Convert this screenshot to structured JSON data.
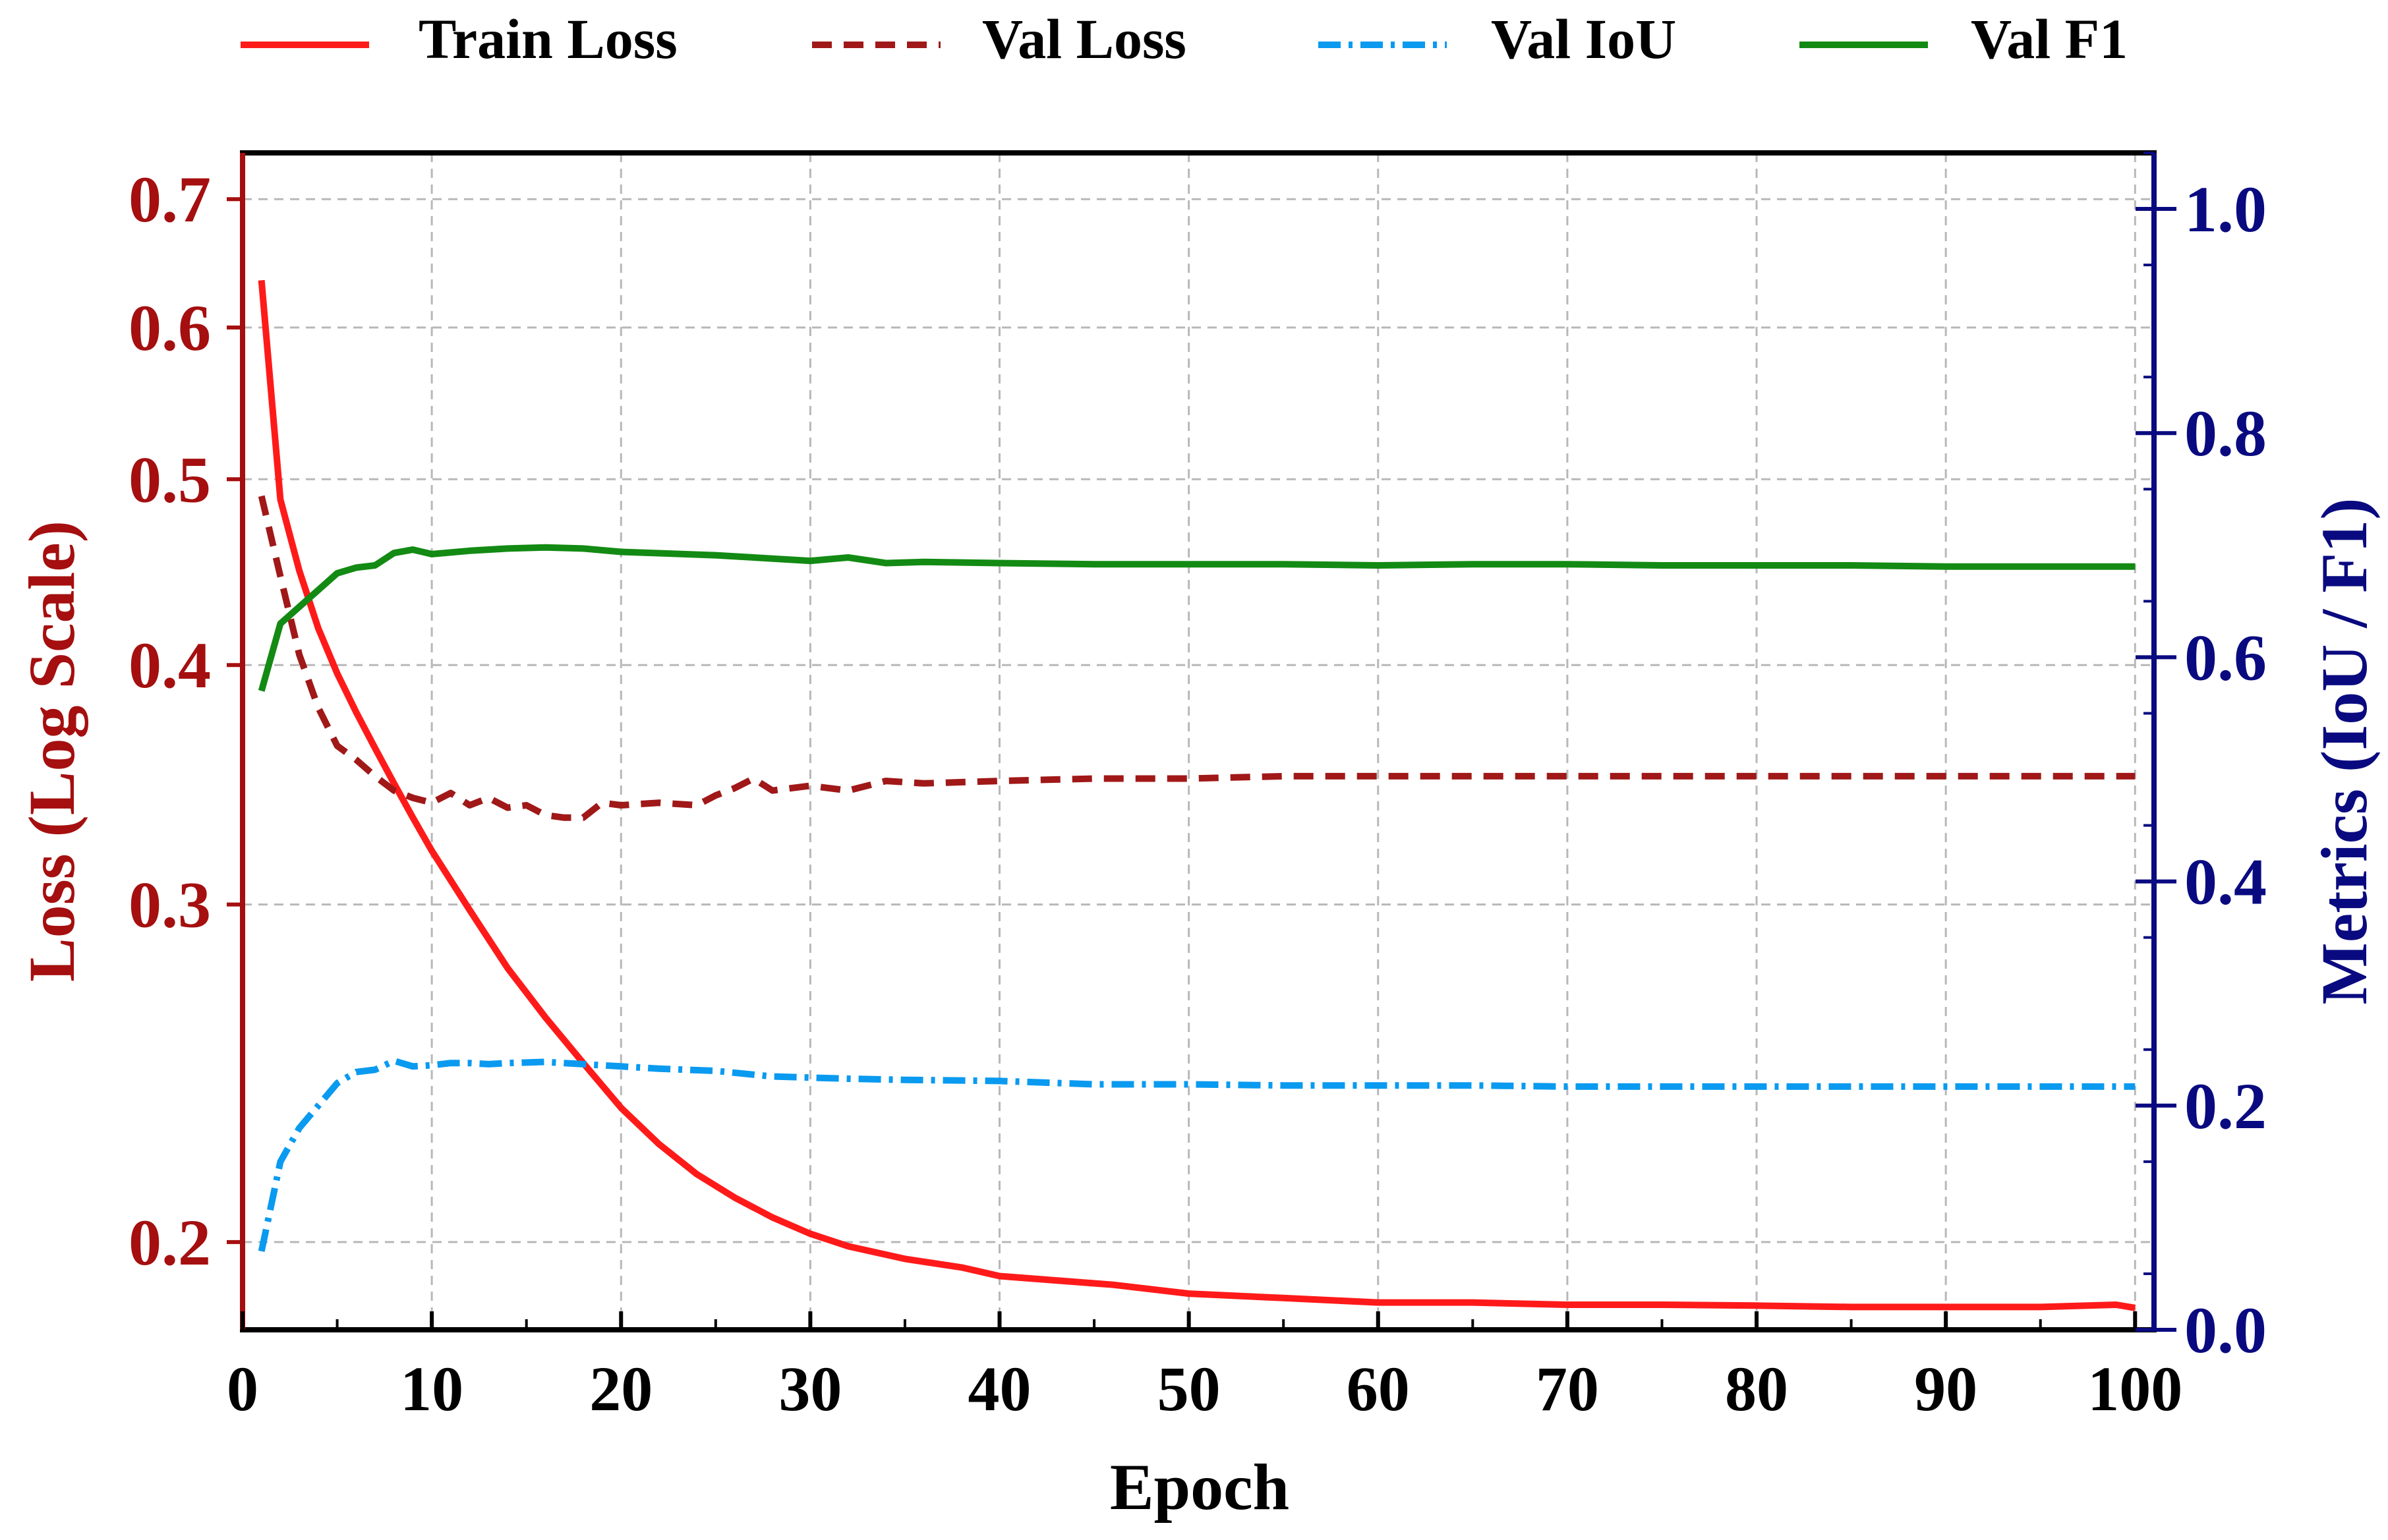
{
  "chart_data": {
    "type": "line",
    "title": "",
    "xlabel": "Epoch",
    "ylabel_left": "Loss (Log Scale)",
    "ylabel_right": "Metrics (IoU / F1)",
    "xlim": [
      0,
      101
    ],
    "ylim_left": [
      0.18,
      0.74
    ],
    "ylim_right": [
      0.0,
      1.05
    ],
    "yscale_left": "log",
    "grid": true,
    "legend_position": "top",
    "x_ticks": [
      "0",
      "10",
      "20",
      "30",
      "40",
      "50",
      "60",
      "70",
      "80",
      "90",
      "100"
    ],
    "y_left_ticks": [
      "0.2",
      "0.3",
      "0.4",
      "0.5",
      "0.6",
      "0.7"
    ],
    "y_right_ticks": [
      "0.0",
      "0.2",
      "0.4",
      "0.6",
      "0.8",
      "1.0"
    ],
    "colors": {
      "left_axis": "#a50f0f",
      "right_axis": "#0a0a80",
      "train_loss": "#ff1a1a",
      "val_loss": "#a01818",
      "val_iou": "#0a9af0",
      "val_f1": "#138a13",
      "grid": "#b8b8b8"
    },
    "series": [
      {
        "name": "Train Loss",
        "axis": "left",
        "style": "solid",
        "x": [
          1,
          2,
          3,
          4,
          5,
          6,
          7,
          8,
          9,
          10,
          12,
          14,
          16,
          18,
          20,
          22,
          24,
          26,
          28,
          30,
          32,
          35,
          38,
          40,
          43,
          46,
          50,
          55,
          60,
          65,
          70,
          75,
          80,
          85,
          90,
          95,
          99,
          100
        ],
        "values": [
          0.635,
          0.488,
          0.448,
          0.418,
          0.396,
          0.378,
          0.362,
          0.347,
          0.333,
          0.32,
          0.298,
          0.278,
          0.262,
          0.248,
          0.235,
          0.225,
          0.217,
          0.211,
          0.206,
          0.202,
          0.199,
          0.196,
          0.194,
          0.192,
          0.191,
          0.19,
          0.188,
          0.187,
          0.186,
          0.186,
          0.1855,
          0.1855,
          0.1853,
          0.185,
          0.185,
          0.185,
          0.1855,
          0.1848
        ]
      },
      {
        "name": "Val Loss",
        "axis": "left",
        "style": "dashed",
        "x": [
          1,
          2,
          3,
          4,
          5,
          6,
          7,
          8,
          9,
          10,
          11,
          12,
          13,
          14,
          15,
          16,
          17,
          18,
          19,
          20,
          22,
          24,
          25,
          26,
          27,
          28,
          30,
          32,
          34,
          36,
          40,
          45,
          50,
          55,
          60,
          70,
          80,
          90,
          95,
          100
        ],
        "values": [
          0.49,
          0.445,
          0.405,
          0.38,
          0.363,
          0.357,
          0.35,
          0.344,
          0.341,
          0.339,
          0.343,
          0.338,
          0.341,
          0.337,
          0.338,
          0.334,
          0.333,
          0.333,
          0.339,
          0.338,
          0.339,
          0.338,
          0.342,
          0.345,
          0.349,
          0.344,
          0.346,
          0.344,
          0.348,
          0.347,
          0.348,
          0.349,
          0.349,
          0.35,
          0.35,
          0.35,
          0.35,
          0.35,
          0.35,
          0.35
        ]
      },
      {
        "name": "Val IoU",
        "axis": "right",
        "style": "dashdot",
        "x": [
          1,
          2,
          3,
          4,
          5,
          6,
          7,
          8,
          9,
          10,
          11,
          12,
          13,
          14,
          16,
          17,
          18,
          20,
          22,
          25,
          28,
          30,
          32,
          35,
          40,
          45,
          50,
          55,
          60,
          65,
          70,
          75,
          80,
          85,
          90,
          95,
          100
        ],
        "values": [
          0.07,
          0.15,
          0.18,
          0.2,
          0.22,
          0.23,
          0.232,
          0.24,
          0.235,
          0.236,
          0.238,
          0.238,
          0.237,
          0.238,
          0.239,
          0.238,
          0.237,
          0.235,
          0.233,
          0.231,
          0.226,
          0.225,
          0.224,
          0.223,
          0.222,
          0.219,
          0.219,
          0.218,
          0.218,
          0.218,
          0.217,
          0.217,
          0.217,
          0.217,
          0.217,
          0.217,
          0.217
        ]
      },
      {
        "name": "Val F1",
        "axis": "right",
        "style": "solid",
        "x": [
          1,
          2,
          3,
          4,
          5,
          6,
          7,
          8,
          9,
          10,
          12,
          14,
          16,
          18,
          20,
          25,
          30,
          32,
          34,
          36,
          40,
          45,
          50,
          55,
          60,
          65,
          70,
          75,
          80,
          85,
          90,
          95,
          100
        ],
        "values": [
          0.57,
          0.63,
          0.645,
          0.66,
          0.675,
          0.68,
          0.682,
          0.693,
          0.696,
          0.692,
          0.695,
          0.697,
          0.698,
          0.697,
          0.694,
          0.691,
          0.686,
          0.689,
          0.684,
          0.685,
          0.684,
          0.683,
          0.683,
          0.683,
          0.682,
          0.683,
          0.683,
          0.682,
          0.682,
          0.682,
          0.681,
          0.681,
          0.681
        ]
      }
    ]
  }
}
